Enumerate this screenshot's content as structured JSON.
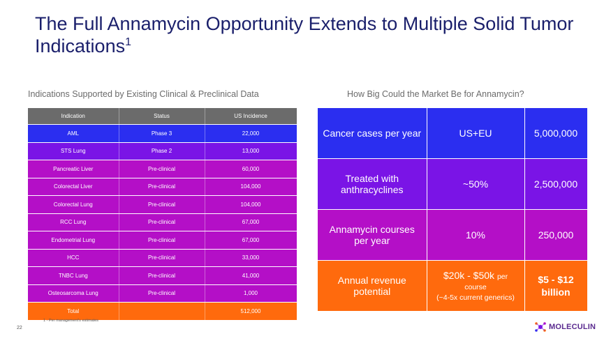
{
  "title": {
    "text": "The Full Annamycin Opportunity Extends to Multiple Solid Tumor Indications",
    "footnote_marker": "1"
  },
  "left_panel": {
    "heading": "Indications Supported by Existing Clinical & Preclinical Data",
    "columns": [
      "Indication",
      "Status",
      "US Incidence"
    ],
    "rows": [
      {
        "indication": "AML",
        "status": "Phase 3",
        "incidence": "22,000",
        "color": "#2b2ef0"
      },
      {
        "indication": "STS Lung",
        "status": "Phase 2",
        "incidence": "13,000",
        "color": "#7a14e6"
      },
      {
        "indication": "Pancreatic Liver",
        "status": "Pre-clinical",
        "incidence": "60,000",
        "color": "#b40fc7"
      },
      {
        "indication": "Colorectal Liver",
        "status": "Pre-clinical",
        "incidence": "104,000",
        "color": "#b40fc7"
      },
      {
        "indication": "Colorectal Lung",
        "status": "Pre-clinical",
        "incidence": "104,000",
        "color": "#b40fc7"
      },
      {
        "indication": "RCC Lung",
        "status": "Pre-clinical",
        "incidence": "67,000",
        "color": "#b40fc7"
      },
      {
        "indication": "Endometrial Lung",
        "status": "Pre-clinical",
        "incidence": "67,000",
        "color": "#b40fc7"
      },
      {
        "indication": "HCC",
        "status": "Pre-clinical",
        "incidence": "33,000",
        "color": "#b40fc7"
      },
      {
        "indication": "TNBC Lung",
        "status": "Pre-clinical",
        "incidence": "41,000",
        "color": "#b40fc7"
      },
      {
        "indication": "Osteosarcoma Lung",
        "status": "Pre-clinical",
        "incidence": "1,000",
        "color": "#b40fc7"
      }
    ],
    "total": {
      "label": "Total",
      "status": "",
      "incidence": "512,000",
      "color": "#ff6a0d"
    },
    "header_color": "#6b6b6b"
  },
  "right_panel": {
    "heading": "How Big Could the Market Be for Annamycin?",
    "rows": [
      {
        "label": "Cancer cases per year",
        "middle": "US+EU",
        "value": "5,000,000",
        "color": "#2b2ef0"
      },
      {
        "label": "Treated with anthracyclines",
        "middle": "~50%",
        "value": "2,500,000",
        "color": "#7a14e6"
      },
      {
        "label": "Annamycin courses per year",
        "middle": "10%",
        "value": "250,000",
        "color": "#b40fc7"
      }
    ],
    "revenue": {
      "label": "Annual revenue potential",
      "range": "$20k - $50k",
      "per": "per",
      "course": "course",
      "note": "(~4-5x current generics)",
      "value_line1": "$5 - $12",
      "value_line2": "billion",
      "color": "#ff6a0d"
    }
  },
  "footnote": "1 - Per management's estimates",
  "page_number": "22",
  "logo": {
    "text": "MOLECULIN",
    "color": "#5a2a8f"
  }
}
